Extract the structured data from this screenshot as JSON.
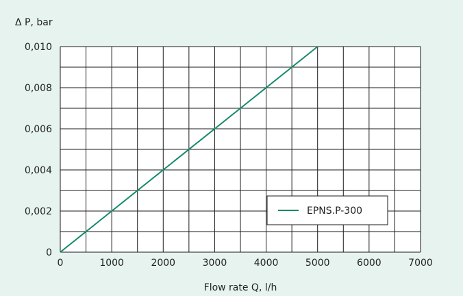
{
  "chart_data": {
    "type": "line",
    "title": "",
    "xlabel": "Flow rate Q, l/h",
    "ylabel": "Δ P, bar",
    "xlim": [
      0,
      7000
    ],
    "ylim": [
      0,
      0.01
    ],
    "x_ticks": [
      0,
      1000,
      2000,
      3000,
      4000,
      5000,
      6000,
      7000
    ],
    "x_tick_labels": [
      "0",
      "1000",
      "2000",
      "3000",
      "4000",
      "5000",
      "6000",
      "7000"
    ],
    "y_ticks": [
      0,
      0.002,
      0.004,
      0.006,
      0.008,
      0.01
    ],
    "y_tick_labels": [
      "0",
      "0,002",
      "0,004",
      "0,006",
      "0,008",
      "0,010"
    ],
    "grid": true,
    "x_grid_step": 500,
    "y_grid_step": 0.001,
    "legend_position": "bottom-right",
    "series": [
      {
        "name": "EPNS.P-300",
        "color": "#138a6c",
        "x": [
          0,
          5000
        ],
        "y": [
          0,
          0.01
        ]
      }
    ]
  }
}
